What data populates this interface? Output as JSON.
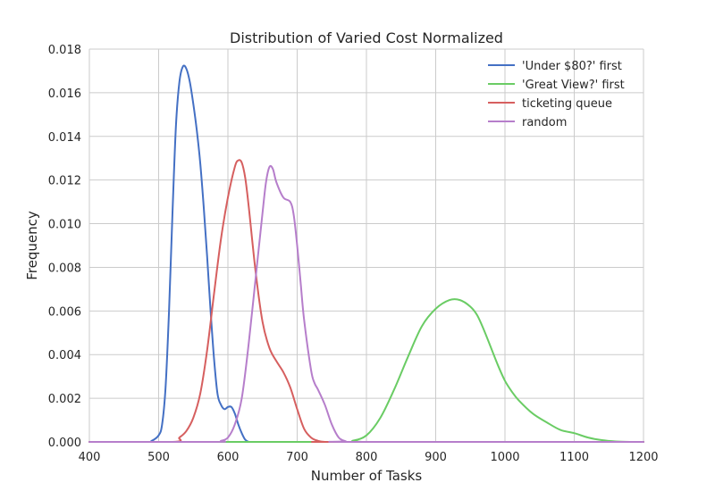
{
  "chart_data": {
    "type": "line",
    "title": "Distribution of Varied Cost Normalized",
    "xlabel": "Number of Tasks",
    "ylabel": "Frequency",
    "xlim": [
      400,
      1200
    ],
    "ylim": [
      0,
      0.018
    ],
    "xticks": [
      "400",
      "500",
      "600",
      "700",
      "800",
      "900",
      "1000",
      "1100",
      "1200"
    ],
    "yticks": [
      "0.000",
      "0.002",
      "0.004",
      "0.006",
      "0.008",
      "0.010",
      "0.012",
      "0.014",
      "0.016",
      "0.018"
    ],
    "grid": true,
    "legend_position": "top-right",
    "series": [
      {
        "name": "'Under $80?' first",
        "color": "#4470c4",
        "x": [
          400,
          480,
          490,
          500,
          505,
          510,
          515,
          520,
          525,
          530,
          535,
          540,
          545,
          550,
          555,
          560,
          565,
          570,
          575,
          580,
          585,
          590,
          595,
          600,
          605,
          610,
          615,
          620,
          625,
          630,
          635,
          640,
          645,
          650,
          660,
          700,
          1200
        ],
        "y": [
          0,
          0,
          5e-05,
          0.0003,
          0.0008,
          0.0025,
          0.006,
          0.0105,
          0.0145,
          0.0165,
          0.0172,
          0.0171,
          0.0165,
          0.0155,
          0.0143,
          0.0128,
          0.0108,
          0.0085,
          0.006,
          0.0038,
          0.0022,
          0.0017,
          0.0015,
          0.0016,
          0.0016,
          0.0013,
          0.0008,
          0.0004,
          0.0001,
          0,
          0,
          0,
          0,
          0,
          0,
          0,
          0
        ]
      },
      {
        "name": "'Great View?' first",
        "color": "#6acc64",
        "x": [
          400,
          760,
          780,
          800,
          820,
          840,
          860,
          880,
          900,
          920,
          935,
          950,
          960,
          970,
          980,
          990,
          1000,
          1010,
          1020,
          1040,
          1060,
          1080,
          1100,
          1120,
          1140,
          1160,
          1180,
          1200
        ],
        "y": [
          0,
          0,
          5e-05,
          0.0003,
          0.0011,
          0.0024,
          0.0039,
          0.0053,
          0.0061,
          0.0065,
          0.0065,
          0.0062,
          0.0058,
          0.0051,
          0.0043,
          0.0035,
          0.0028,
          0.0023,
          0.0019,
          0.0013,
          0.0009,
          0.00055,
          0.0004,
          0.0002,
          8e-05,
          2e-05,
          0,
          0
        ]
      },
      {
        "name": "ticketing queue",
        "color": "#d65f5f",
        "x": [
          400,
          520,
          530,
          540,
          550,
          560,
          570,
          580,
          590,
          600,
          610,
          615,
          620,
          625,
          630,
          640,
          650,
          660,
          670,
          680,
          690,
          700,
          710,
          720,
          730,
          740,
          760,
          1200
        ],
        "y": [
          0,
          0,
          0.0002,
          0.0005,
          0.0011,
          0.0022,
          0.0042,
          0.0068,
          0.0093,
          0.0112,
          0.0126,
          0.0129,
          0.0128,
          0.0121,
          0.0108,
          0.0078,
          0.0055,
          0.0043,
          0.0037,
          0.0032,
          0.0025,
          0.0015,
          0.0006,
          0.0002,
          5e-05,
          0,
          0,
          0
        ]
      },
      {
        "name": "random",
        "color": "#b67ecb",
        "x": [
          400,
          580,
          590,
          600,
          610,
          620,
          630,
          640,
          650,
          655,
          660,
          665,
          670,
          680,
          690,
          695,
          700,
          705,
          710,
          720,
          725,
          730,
          740,
          750,
          760,
          770,
          780,
          1200
        ],
        "y": [
          0,
          0,
          5e-05,
          0.0002,
          0.0008,
          0.002,
          0.0045,
          0.0075,
          0.0105,
          0.0119,
          0.0126,
          0.0125,
          0.0119,
          0.0112,
          0.011,
          0.0104,
          0.009,
          0.0073,
          0.0056,
          0.0033,
          0.0027,
          0.0024,
          0.0017,
          0.0008,
          0.0002,
          3e-05,
          0,
          0
        ]
      }
    ]
  }
}
